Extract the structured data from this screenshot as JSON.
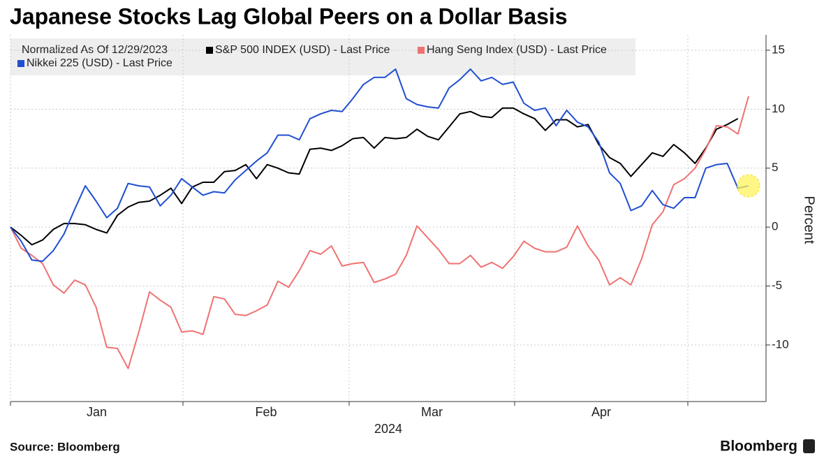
{
  "chart_data": {
    "type": "line",
    "title": "Japanese Stocks Lag Global Peers on a Dollar Basis",
    "legend_title": "Normalized As Of 12/29/2023",
    "y_label": "Percent",
    "x_labels": [
      "Jan",
      "Feb",
      "Mar",
      "Apr"
    ],
    "x_year": "2024",
    "source": "Source: Bloomberg",
    "brand": "Bloomberg",
    "categories": [
      null,
      null,
      null,
      null,
      null,
      null,
      null,
      null,
      null,
      null,
      null,
      null,
      null,
      null,
      null,
      null,
      null,
      null,
      null,
      null,
      null,
      null,
      null,
      null,
      null,
      null,
      null,
      null,
      null,
      null,
      null,
      null,
      null,
      null,
      null,
      null,
      null,
      null,
      null,
      null,
      null,
      null,
      null,
      null,
      null,
      null,
      null,
      null,
      null,
      null,
      null,
      null,
      null,
      null,
      null,
      null,
      null,
      null,
      null,
      null,
      null,
      null,
      null,
      null,
      null,
      null,
      null,
      null,
      null,
      null
    ],
    "series": [
      {
        "name": "S&P 500 INDEX (USD) - Last Price",
        "color": "#000000",
        "values": [
          0,
          -0.7,
          -1.5,
          -1.1,
          -0.2,
          0.3,
          0.3,
          0.2,
          -0.2,
          -0.5,
          1.0,
          1.7,
          2.1,
          2.2,
          2.7,
          3.3,
          2.0,
          3.4,
          3.8,
          3.8,
          4.7,
          4.8,
          5.3,
          4.1,
          5.3,
          5.0,
          4.6,
          4.5,
          6.6,
          6.7,
          6.5,
          6.9,
          7.5,
          7.6,
          6.7,
          7.6,
          7.5,
          7.6,
          8.3,
          7.7,
          7.4,
          8.5,
          9.6,
          9.8,
          9.4,
          9.3,
          10.1,
          10.1,
          9.6,
          9.2,
          8.2,
          9.1,
          9.1,
          8.5,
          8.7,
          7.0,
          5.9,
          5.4,
          4.3,
          5.3,
          6.3,
          6.0,
          7.0,
          6.3,
          5.4,
          6.7,
          8.3,
          8.7,
          9.2,
          null
        ]
      },
      {
        "name": "Hang Seng Index (USD) - Last Price",
        "color": "#f07272",
        "values": [
          0,
          -1.8,
          -2.4,
          -3.1,
          -4.9,
          -5.6,
          -4.5,
          -4.9,
          -6.8,
          -10.2,
          -10.3,
          -12.0,
          -8.9,
          -5.5,
          -6.2,
          -6.8,
          -8.9,
          -8.8,
          -9.1,
          -5.9,
          -6.1,
          -7.4,
          -7.5,
          -7.1,
          -6.6,
          -4.6,
          -5.1,
          -3.7,
          -2.0,
          -2.3,
          -1.6,
          -3.3,
          -3.1,
          -3.0,
          -4.7,
          -4.4,
          -4.0,
          -2.4,
          0.1,
          -0.9,
          -1.9,
          -3.1,
          -3.1,
          -2.4,
          -3.4,
          -3.0,
          -3.5,
          -2.5,
          -1.2,
          -1.8,
          -2.1,
          -2.1,
          -1.7,
          0.1,
          -1.6,
          -2.8,
          -4.9,
          -4.3,
          -4.9,
          -2.7,
          0.2,
          1.3,
          3.6,
          4.1,
          5.0,
          6.6,
          8.6,
          8.5,
          7.9,
          11.1
        ]
      },
      {
        "name": "Nikkei 225 (USD) - Last Price",
        "color": "#1f4fd0",
        "values": [
          0,
          -1.2,
          -2.8,
          -2.9,
          -2.0,
          -0.6,
          1.5,
          3.5,
          2.2,
          0.8,
          1.6,
          3.7,
          3.5,
          3.4,
          1.8,
          2.7,
          4.1,
          3.4,
          2.7,
          3.0,
          2.9,
          4.0,
          4.8,
          5.6,
          6.3,
          7.8,
          7.8,
          7.4,
          9.2,
          9.6,
          9.9,
          9.8,
          10.9,
          12.1,
          12.7,
          12.7,
          13.4,
          10.9,
          10.4,
          10.2,
          10.1,
          11.8,
          12.5,
          13.4,
          12.4,
          12.7,
          12.1,
          12.3,
          10.5,
          9.9,
          10.1,
          8.6,
          9.9,
          8.9,
          8.5,
          7.2,
          4.6,
          3.7,
          1.4,
          1.8,
          3.1,
          1.9,
          1.6,
          2.5,
          2.5,
          5.0,
          5.3,
          5.4,
          3.3,
          3.5
        ]
      }
    ],
    "ylim": [
      -14.8,
      16.3
    ],
    "yticks": [
      -10,
      -5,
      0,
      5,
      10,
      15
    ],
    "grid": true
  }
}
